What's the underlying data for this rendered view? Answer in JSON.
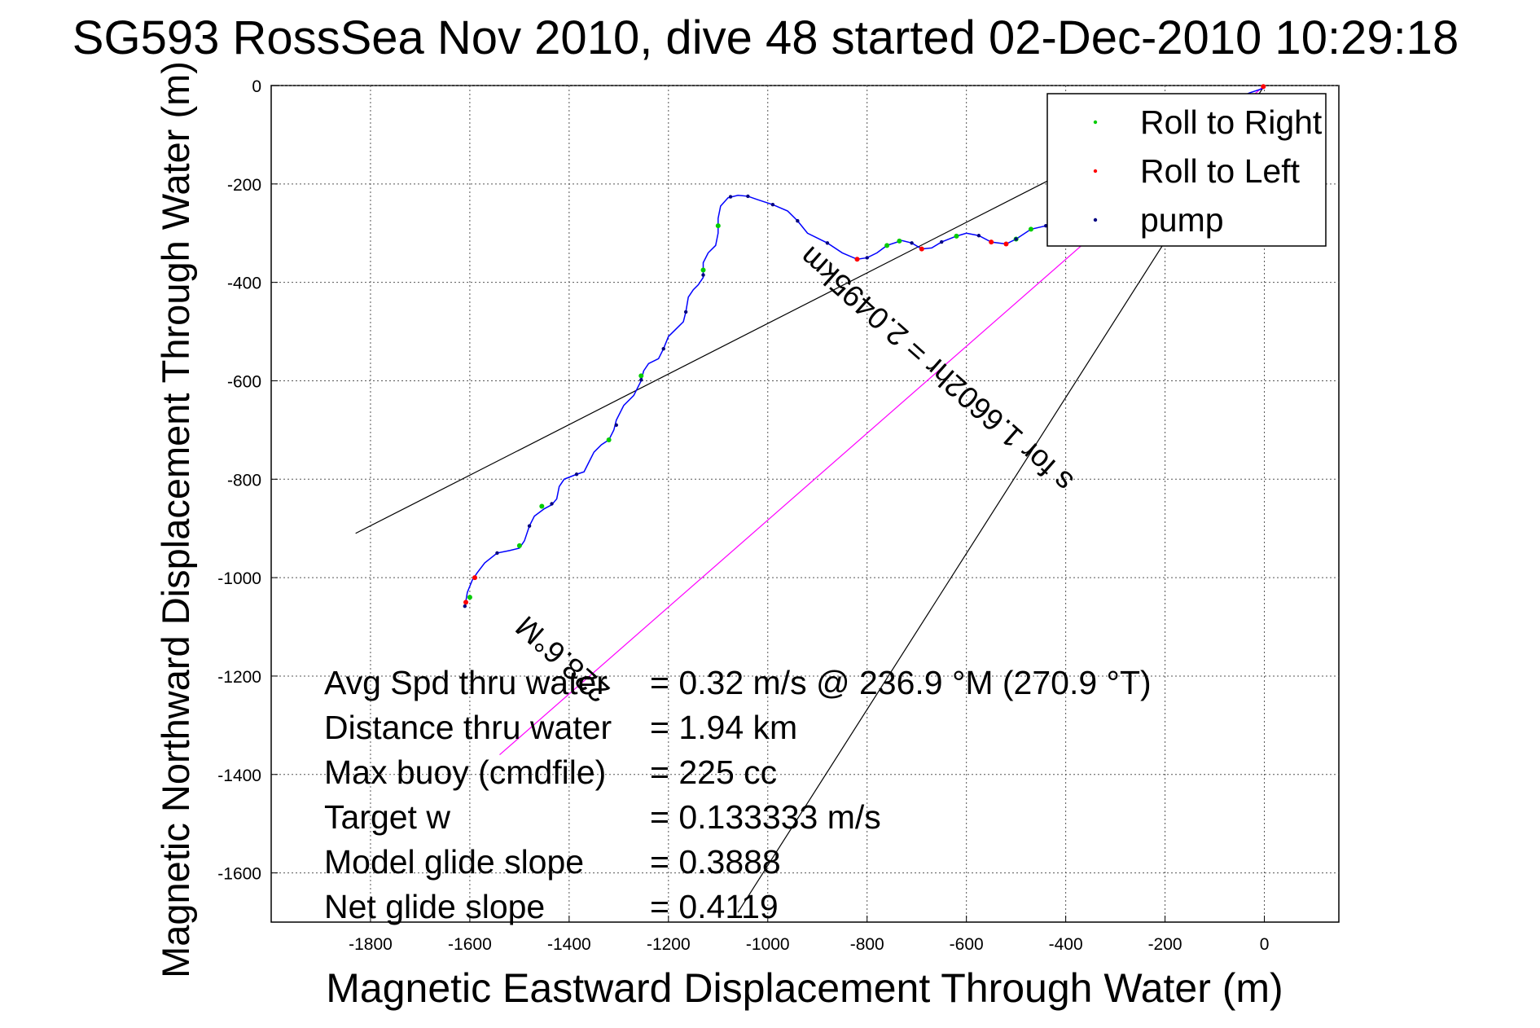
{
  "chart_data": {
    "type": "scatter",
    "title": "SG593 RossSea Nov 2010, dive 48 started 02-Dec-2010 10:29:18",
    "xlabel": "Magnetic Eastward Displacement Through Water (m)",
    "ylabel": "Magnetic Northward Displacement Through Water (m)",
    "xlim": [
      -2000,
      150
    ],
    "ylim": [
      -1700,
      0
    ],
    "xticks": [
      -1800,
      -1600,
      -1400,
      -1200,
      -1000,
      -800,
      -600,
      -400,
      -200,
      0
    ],
    "yticks": [
      0,
      -200,
      -400,
      -600,
      -800,
      -1000,
      -1200,
      -1400,
      -1600
    ],
    "grid": true,
    "legend_position": "top-right",
    "legend": [
      {
        "label": "Roll to Right",
        "color": "#00cc00"
      },
      {
        "label": "Roll to Left",
        "color": "#ff0000"
      },
      {
        "label": "pump",
        "color": "#000080"
      }
    ],
    "series": [
      {
        "name": "track",
        "color": "#0000ff",
        "points": [
          [
            -1610,
            -1060
          ],
          [
            -1605,
            -1030
          ],
          [
            -1595,
            -1005
          ],
          [
            -1585,
            -990
          ],
          [
            -1570,
            -970
          ],
          [
            -1545,
            -950
          ],
          [
            -1520,
            -945
          ],
          [
            -1500,
            -940
          ],
          [
            -1490,
            -925
          ],
          [
            -1480,
            -895
          ],
          [
            -1470,
            -875
          ],
          [
            -1450,
            -860
          ],
          [
            -1435,
            -852
          ],
          [
            -1425,
            -840
          ],
          [
            -1420,
            -815
          ],
          [
            -1410,
            -800
          ],
          [
            -1385,
            -790
          ],
          [
            -1370,
            -785
          ],
          [
            -1360,
            -765
          ],
          [
            -1350,
            -745
          ],
          [
            -1335,
            -730
          ],
          [
            -1320,
            -720
          ],
          [
            -1310,
            -700
          ],
          [
            -1305,
            -680
          ],
          [
            -1290,
            -650
          ],
          [
            -1270,
            -630
          ],
          [
            -1255,
            -600
          ],
          [
            -1250,
            -580
          ],
          [
            -1240,
            -565
          ],
          [
            -1220,
            -555
          ],
          [
            -1210,
            -535
          ],
          [
            -1200,
            -510
          ],
          [
            -1185,
            -495
          ],
          [
            -1170,
            -480
          ],
          [
            -1165,
            -460
          ],
          [
            -1160,
            -430
          ],
          [
            -1150,
            -415
          ],
          [
            -1140,
            -405
          ],
          [
            -1130,
            -390
          ],
          [
            -1130,
            -360
          ],
          [
            -1120,
            -340
          ],
          [
            -1105,
            -325
          ],
          [
            -1100,
            -300
          ],
          [
            -1100,
            -270
          ],
          [
            -1095,
            -245
          ],
          [
            -1080,
            -228
          ],
          [
            -1060,
            -223
          ],
          [
            -1040,
            -225
          ],
          [
            -1020,
            -232
          ],
          [
            -990,
            -242
          ],
          [
            -960,
            -255
          ],
          [
            -940,
            -275
          ],
          [
            -920,
            -300
          ],
          [
            -880,
            -320
          ],
          [
            -850,
            -340
          ],
          [
            -820,
            -353
          ],
          [
            -800,
            -350
          ],
          [
            -780,
            -340
          ],
          [
            -760,
            -325
          ],
          [
            -730,
            -315
          ],
          [
            -710,
            -320
          ],
          [
            -690,
            -332
          ],
          [
            -670,
            -330
          ],
          [
            -650,
            -318
          ],
          [
            -620,
            -306
          ],
          [
            -600,
            -300
          ],
          [
            -575,
            -305
          ],
          [
            -550,
            -318
          ],
          [
            -520,
            -322
          ],
          [
            -500,
            -312
          ],
          [
            -470,
            -292
          ],
          [
            -440,
            -285
          ],
          [
            -410,
            -272
          ],
          [
            -380,
            -258
          ],
          [
            -350,
            -240
          ],
          [
            -300,
            -205
          ],
          [
            -250,
            -165
          ],
          [
            -200,
            -125
          ],
          [
            -150,
            -85
          ],
          [
            -100,
            -50
          ],
          [
            -60,
            -28
          ],
          [
            -30,
            -15
          ],
          [
            0,
            -5
          ]
        ]
      },
      {
        "name": "Roll to Right",
        "color": "#00cc00",
        "points": [
          [
            -1600,
            -1040
          ],
          [
            -1500,
            -935
          ],
          [
            -1455,
            -855
          ],
          [
            -1320,
            -720
          ],
          [
            -1255,
            -590
          ],
          [
            -1130,
            -375
          ],
          [
            -1100,
            -285
          ],
          [
            -760,
            -325
          ],
          [
            -735,
            -316
          ],
          [
            -620,
            -306
          ],
          [
            -500,
            -312
          ],
          [
            -470,
            -292
          ],
          [
            -410,
            -272
          ],
          [
            -385,
            -262
          ]
        ]
      },
      {
        "name": "Roll to Left",
        "color": "#ff0000",
        "points": [
          [
            -1608,
            -1050
          ],
          [
            -1590,
            -1000
          ],
          [
            -820,
            -353
          ],
          [
            -690,
            -332
          ],
          [
            -550,
            -318
          ],
          [
            -520,
            -322
          ],
          [
            -2,
            -2
          ]
        ]
      },
      {
        "name": "pump",
        "color": "#000080",
        "points": [
          [
            -1610,
            -1058
          ],
          [
            -1545,
            -950
          ],
          [
            -1480,
            -895
          ],
          [
            -1435,
            -850
          ],
          [
            -1385,
            -790
          ],
          [
            -1305,
            -690
          ],
          [
            -1255,
            -598
          ],
          [
            -1210,
            -535
          ],
          [
            -1165,
            -460
          ],
          [
            -1130,
            -385
          ],
          [
            -1075,
            -226
          ],
          [
            -1040,
            -225
          ],
          [
            -990,
            -242
          ],
          [
            -940,
            -275
          ],
          [
            -880,
            -320
          ],
          [
            -800,
            -350
          ],
          [
            -710,
            -320
          ],
          [
            -650,
            -318
          ],
          [
            -575,
            -305
          ],
          [
            -500,
            -312
          ],
          [
            -440,
            -285
          ]
        ]
      }
    ],
    "reference_lines": [
      {
        "name": "glide-line",
        "color": "#000000",
        "points": [
          [
            -1830,
            -910
          ],
          [
            -390,
            -170
          ]
        ]
      },
      {
        "name": "vector-line",
        "color": "#000000",
        "points": [
          [
            0,
            0
          ],
          [
            -1060,
            -1680
          ]
        ]
      },
      {
        "name": "average-heading-line",
        "color": "#ff00ff",
        "points": [
          [
            0,
            0
          ],
          [
            -1540,
            -1360
          ]
        ]
      }
    ],
    "annotations": {
      "heading": "228.6°M",
      "vector_distance": "s for 1.6602hr = 2.0495km",
      "stats": [
        {
          "label": "Avg Spd thru water",
          "value": "=  0.32 m/s @ 236.9 °M (270.9 °T)"
        },
        {
          "label": "Distance thru water",
          "value": "=  1.94 km"
        },
        {
          "label": "Max buoy (cmdfile)",
          "value": "= 225 cc"
        },
        {
          "label": "Target w",
          "value": "= 0.133333 m/s"
        },
        {
          "label": "Model glide slope",
          "value": "= 0.3888"
        },
        {
          "label": "Net glide slope",
          "value": "= 0.4119"
        }
      ]
    }
  }
}
